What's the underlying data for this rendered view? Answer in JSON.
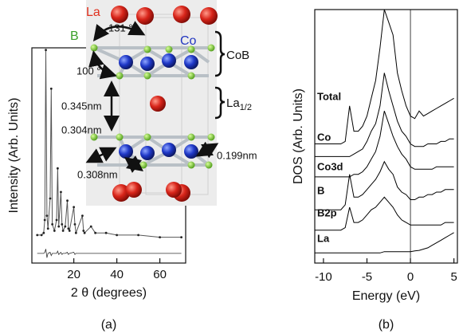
{
  "chart_data": [
    {
      "type": "line",
      "xlabel": "2 θ  (degrees)",
      "ylabel": "Intensity (Arb. Units)",
      "panel_label": "(a)",
      "xlim": [
        0.5,
        72
      ],
      "xticks": [
        20,
        40,
        60
      ],
      "ylim": [
        0,
        100
      ],
      "x": [
        3,
        5,
        6,
        6.5,
        7,
        7.5,
        8,
        9,
        9.5,
        10,
        11,
        12,
        12.5,
        13,
        14,
        14.5,
        15,
        16,
        17,
        17.5,
        18,
        20,
        20.5,
        21,
        24,
        24.5,
        25,
        28,
        30,
        35,
        40,
        50,
        60,
        70
      ],
      "series": [
        {
          "color": "#555555",
          "values": [
            13,
            13,
            14,
            20,
            99,
            22,
            16,
            30,
            81,
            18,
            15,
            20,
            44,
            17,
            33,
            18,
            15,
            17,
            29,
            16,
            15,
            26,
            18,
            14,
            22,
            15,
            14,
            17,
            14,
            14,
            13,
            13,
            12,
            12
          ]
        },
        {
          "color": "#333333",
          "values": [
            4.5,
            4.5,
            4.5,
            5,
            6.5,
            2.5,
            4.5,
            5,
            3.5,
            4.5,
            4.5,
            4.5,
            5.5,
            4,
            5,
            4,
            4.5,
            4.5,
            5,
            4,
            4.5,
            5,
            4,
            4.5,
            4.5,
            4.5,
            4.5,
            4.5,
            4.5,
            4.5,
            4.5,
            4.5,
            4.5,
            4.5
          ]
        }
      ]
    },
    {
      "type": "line",
      "xlabel": "Energy  (eV)",
      "ylabel": "DOS (Arb. Units)",
      "panel_label": "(b)",
      "xlim": [
        -11,
        5.4
      ],
      "xticks": [
        -10,
        -5,
        0,
        5
      ],
      "ylim": [
        0,
        100
      ],
      "vline": 0,
      "x": [
        -11,
        -10.5,
        -10,
        -9.5,
        -9,
        -8.5,
        -8,
        -7.5,
        -7,
        -6.5,
        -6,
        -5.5,
        -5,
        -4.5,
        -4,
        -3.5,
        -3,
        -2.5,
        -2,
        -1.5,
        -1,
        -0.5,
        0,
        0.5,
        1,
        1.5,
        2,
        2.5,
        3,
        3.5,
        4,
        4.5,
        5
      ],
      "series": [
        {
          "name": "Total",
          "color": "#000000",
          "values": [
            47,
            47,
            47,
            47,
            47,
            47,
            47,
            48,
            62,
            52,
            52,
            54,
            58,
            65,
            72,
            85,
            100,
            95,
            90,
            75,
            68,
            62,
            58,
            57,
            60,
            58,
            59,
            60,
            61,
            62,
            63,
            64,
            65
          ]
        },
        {
          "name": "Co",
          "color": "#000000",
          "values": [
            42,
            42,
            42,
            42,
            42,
            42,
            42,
            42,
            42,
            43,
            44,
            45,
            48,
            52,
            55,
            62,
            75,
            68,
            62,
            56,
            52,
            50,
            47,
            46,
            46,
            46,
            47,
            47,
            47,
            48,
            48,
            49,
            49
          ]
        },
        {
          "name": "Co3d",
          "color": "#000000",
          "values": [
            34,
            34,
            34,
            34,
            34,
            34,
            34,
            34,
            34,
            35,
            35,
            36,
            38,
            41,
            44,
            50,
            60,
            55,
            50,
            46,
            43,
            41,
            38,
            37,
            37,
            37,
            37,
            37,
            38,
            38,
            38,
            38,
            38
          ]
        },
        {
          "name": "B",
          "color": "#000000",
          "values": [
            21,
            21,
            21,
            21,
            21,
            21,
            21,
            23,
            35,
            26,
            26,
            27,
            29,
            31,
            33,
            36,
            40,
            37,
            35,
            30,
            28,
            27,
            25,
            25,
            26,
            26,
            27,
            27,
            28,
            28,
            29,
            29,
            29
          ]
        },
        {
          "name": "B2p",
          "color": "#000000",
          "values": [
            13,
            13,
            13,
            13,
            13,
            13,
            13,
            14,
            22,
            16,
            16,
            17,
            19,
            21,
            22,
            24,
            26,
            24,
            22,
            19,
            17,
            16,
            15,
            15,
            15,
            15,
            15,
            15,
            15,
            15,
            16,
            16,
            16
          ]
        },
        {
          "name": "La",
          "color": "#000000",
          "values": [
            4,
            4,
            4,
            4,
            4,
            4,
            4,
            4,
            4,
            4,
            4,
            4,
            4,
            4,
            4,
            4,
            4.5,
            4.5,
            4.5,
            4.5,
            4.5,
            4.5,
            4.5,
            4.8,
            5,
            5.5,
            6,
            7,
            8,
            9,
            10,
            11,
            12
          ]
        }
      ]
    }
  ],
  "structure": {
    "la": "La",
    "b": "B",
    "co": "Co",
    "angle_top": "131 °",
    "angle_left": "100 °",
    "cob": "CoB",
    "la_half": "La",
    "la_half_sub": "1/2",
    "d1": "0.345nm",
    "d2": "0.304nm",
    "d3": "0.199nm",
    "d4": "0.308nm"
  }
}
